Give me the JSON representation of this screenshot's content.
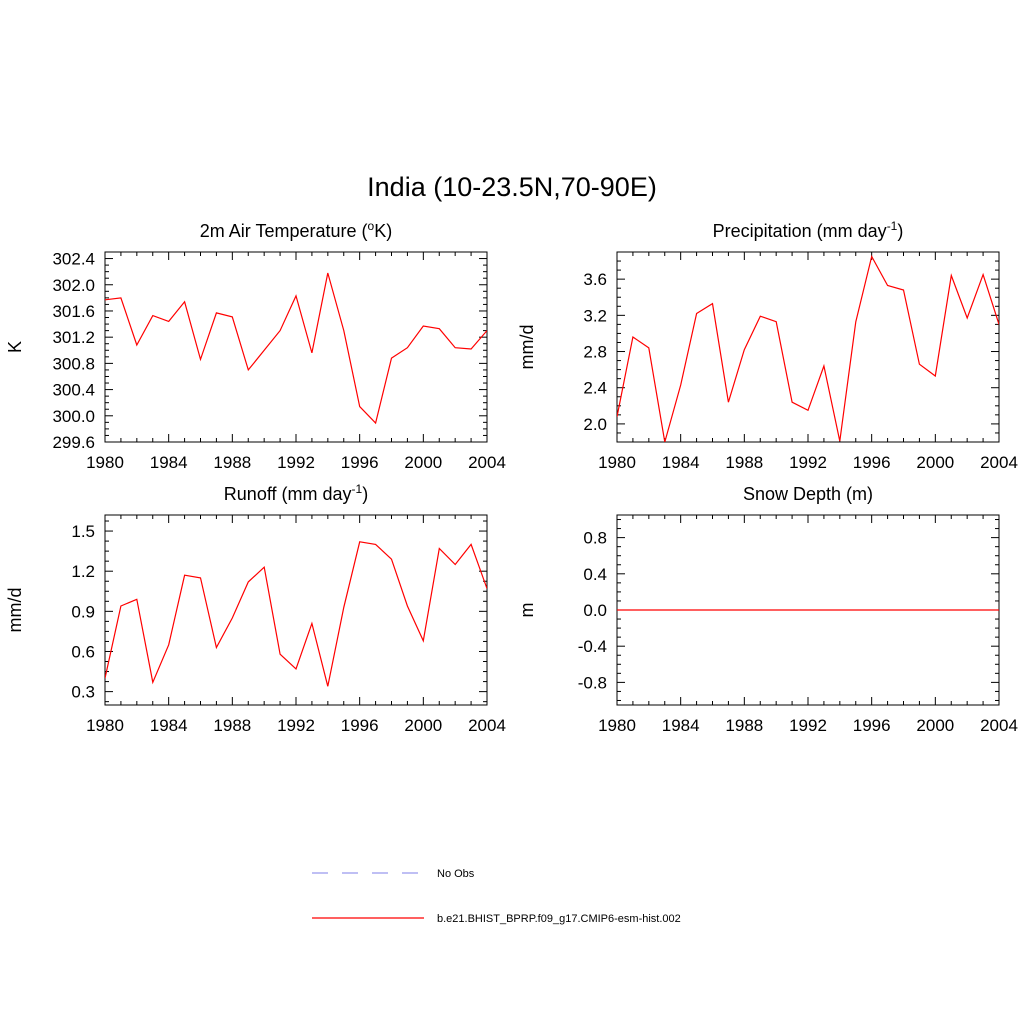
{
  "title": "India (10-23.5N,70-90E)",
  "colors": {
    "series": "#ff0000",
    "obs": "#9999ee",
    "axis": "#000000"
  },
  "chart_data": [
    {
      "type": "line",
      "title": "2m Air Temperature (",
      "title_sup": "o",
      "title_tail": "K)",
      "ylabel": "K",
      "xlim": [
        1980,
        2004
      ],
      "ylim": [
        299.6,
        302.5
      ],
      "x_ticks": [
        "1980",
        "1984",
        "1988",
        "1992",
        "1996",
        "2000",
        "2004"
      ],
      "y_ticks": [
        "299.6",
        "300.0",
        "300.4",
        "300.8",
        "301.2",
        "301.6",
        "302.0",
        "302.4"
      ],
      "series": [
        {
          "x": [
            1980,
            1981,
            1982,
            1983,
            1984,
            1985,
            1986,
            1987,
            1988,
            1989,
            1990,
            1991,
            1992,
            1993,
            1994,
            1995,
            1996,
            1997,
            1998,
            1999,
            2000,
            2001,
            2002,
            2003,
            2004
          ],
          "values": [
            301.77,
            301.8,
            301.08,
            301.53,
            301.44,
            301.74,
            300.86,
            301.57,
            301.51,
            300.7,
            301.0,
            301.3,
            301.83,
            300.96,
            302.18,
            301.3,
            300.14,
            299.89,
            300.88,
            301.04,
            301.37,
            301.33,
            301.04,
            301.02,
            301.3
          ]
        }
      ]
    },
    {
      "type": "line",
      "title": "Precipitation (mm day",
      "title_sup": "-1",
      "title_tail": ")",
      "ylabel": "mm/d",
      "xlim": [
        1980,
        2004
      ],
      "ylim": [
        1.8,
        3.9
      ],
      "x_ticks": [
        "1980",
        "1984",
        "1988",
        "1992",
        "1996",
        "2000",
        "2004"
      ],
      "y_ticks": [
        "2.0",
        "2.4",
        "2.8",
        "3.2",
        "3.6"
      ],
      "series": [
        {
          "x": [
            1980,
            1981,
            1982,
            1983,
            1984,
            1985,
            1986,
            1987,
            1988,
            1989,
            1990,
            1991,
            1992,
            1993,
            1994,
            1995,
            1996,
            1997,
            1998,
            1999,
            2000,
            2001,
            2002,
            2003,
            2004
          ],
          "values": [
            2.08,
            2.96,
            2.84,
            1.8,
            2.43,
            3.22,
            3.33,
            2.24,
            2.82,
            3.19,
            3.13,
            2.24,
            2.15,
            2.64,
            1.81,
            3.13,
            3.85,
            3.53,
            3.48,
            2.66,
            2.53,
            3.64,
            3.17,
            3.65,
            3.1
          ]
        }
      ]
    },
    {
      "type": "line",
      "title": "Runoff (mm day",
      "title_sup": "-1",
      "title_tail": ")",
      "ylabel": "mm/d",
      "xlim": [
        1980,
        2004
      ],
      "ylim": [
        0.2,
        1.62
      ],
      "x_ticks": [
        "1980",
        "1984",
        "1988",
        "1992",
        "1996",
        "2000",
        "2004"
      ],
      "y_ticks": [
        "0.3",
        "0.6",
        "0.9",
        "1.2",
        "1.5"
      ],
      "series": [
        {
          "x": [
            1980,
            1981,
            1982,
            1983,
            1984,
            1985,
            1986,
            1987,
            1988,
            1989,
            1990,
            1991,
            1992,
            1993,
            1994,
            1995,
            1996,
            1997,
            1998,
            1999,
            2000,
            2001,
            2002,
            2003,
            2004
          ],
          "values": [
            0.4,
            0.94,
            0.99,
            0.37,
            0.65,
            1.17,
            1.15,
            0.63,
            0.85,
            1.12,
            1.23,
            0.58,
            0.47,
            0.81,
            0.34,
            0.93,
            1.42,
            1.4,
            1.29,
            0.94,
            0.68,
            1.37,
            1.25,
            1.4,
            1.07
          ]
        }
      ]
    },
    {
      "type": "line",
      "title": "Snow Depth (m)",
      "title_sup": "",
      "title_tail": "",
      "ylabel": "m",
      "xlim": [
        1980,
        2004
      ],
      "ylim": [
        -1.05,
        1.05
      ],
      "x_ticks": [
        "1980",
        "1984",
        "1988",
        "1992",
        "1996",
        "2000",
        "2004"
      ],
      "y_ticks": [
        "-0.8",
        "-0.4",
        "0.0",
        "0.4",
        "0.8"
      ],
      "series": [
        {
          "x": [
            1980,
            2004
          ],
          "values": [
            0.0,
            0.0
          ]
        }
      ]
    }
  ],
  "legend": [
    {
      "label": "No Obs",
      "style": "dashed",
      "color": "#9999ee"
    },
    {
      "label": "b.e21.BHIST_BPRP.f09_g17.CMIP6-esm-hist.002",
      "style": "solid",
      "color": "#ff0000"
    }
  ]
}
